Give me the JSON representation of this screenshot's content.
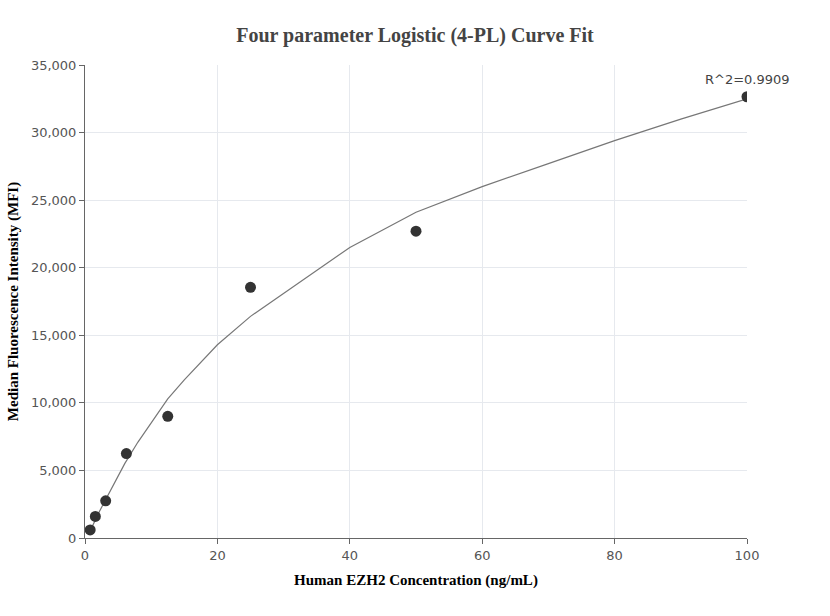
{
  "chart_data": {
    "type": "scatter",
    "title": "Four parameter Logistic (4-PL) Curve Fit",
    "x_label": "Human EZH2 Concentration (ng/mL)",
    "y_label": "Median Fluorescence Intensity (MFI)",
    "series": [
      {
        "type": "scatter",
        "marker": "circle",
        "color": "#333333",
        "x": [
          0.78,
          1.56,
          3.125,
          6.25,
          12.5,
          25,
          50,
          100
        ],
        "values": [
          600,
          1600,
          2750,
          6250,
          9000,
          18550,
          22700,
          32650
        ]
      },
      {
        "type": "line",
        "line_style": "solid",
        "color": "#777777",
        "x": [
          0.78,
          1,
          2,
          3,
          4,
          6,
          8,
          10,
          12.5,
          15,
          20,
          25,
          30,
          40,
          50,
          60,
          70,
          80,
          90,
          100
        ],
        "values": [
          550,
          750,
          1800,
          2700,
          3600,
          5500,
          7100,
          8500,
          10300,
          11700,
          14300,
          16400,
          18100,
          21500,
          24100,
          26000,
          27700,
          29400,
          31000,
          32500
        ]
      }
    ],
    "xlim": [
      0,
      100
    ],
    "xticks": [
      0,
      20,
      40,
      60,
      80,
      100
    ],
    "ylim": [
      0,
      35000
    ],
    "yticks": [
      0,
      {
        "value": 5000,
        "label": "5,000"
      },
      {
        "value": 10000,
        "label": "10,000"
      },
      {
        "value": 15000,
        "label": "15,000"
      },
      {
        "value": 20000,
        "label": "20,000"
      },
      {
        "value": 25000,
        "label": "25,000"
      },
      {
        "value": 30000,
        "label": "30,000"
      },
      {
        "value": 35000,
        "label": "35,000"
      }
    ],
    "grid": true,
    "annotations": [
      {
        "text": "R^2=0.9909",
        "x": 100,
        "y": 33200
      }
    ]
  }
}
